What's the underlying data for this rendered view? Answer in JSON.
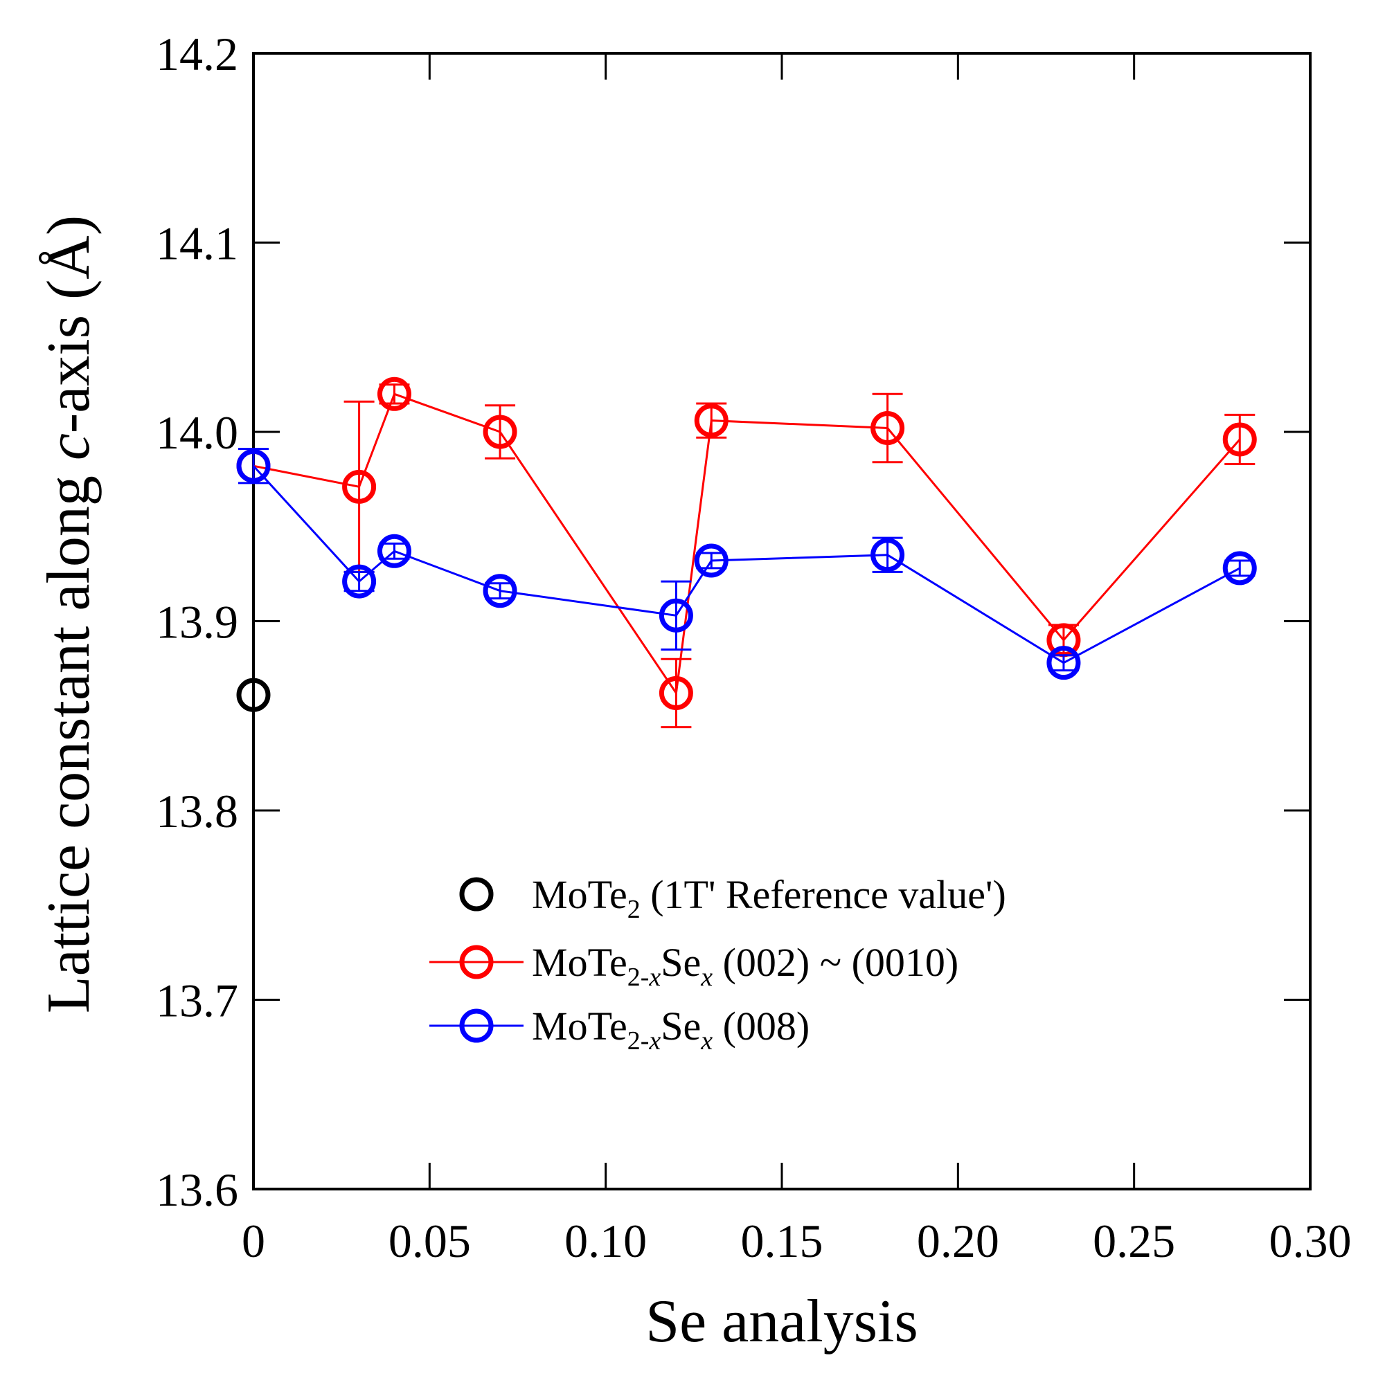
{
  "chart_data": {
    "type": "scatter",
    "xlabel": "Se analysis",
    "ylabel": {
      "before": "Lattice constant along ",
      "italic": "c",
      "after": "-axis (Å)"
    },
    "xlim": [
      0,
      0.3
    ],
    "ylim": [
      13.6,
      14.2
    ],
    "xticks": [
      0,
      0.05,
      0.1,
      0.15,
      0.2,
      0.25,
      0.3
    ],
    "xtick_labels": [
      "0",
      "0.05",
      "0.10",
      "0.15",
      "0.20",
      "0.25",
      "0.30"
    ],
    "yticks": [
      13.6,
      13.7,
      13.8,
      13.9,
      14.0,
      14.1,
      14.2
    ],
    "ytick_labels": [
      "13.6",
      "13.7",
      "13.8",
      "13.9",
      "14.0",
      "14.1",
      "14.2"
    ],
    "legend_position": "center-bottom",
    "series": [
      {
        "key": "ref",
        "color": "#000000",
        "line": false,
        "legend": {
          "main": "MoTe",
          "sub": "2",
          "rest": " (1T' Reference value')"
        },
        "points": [
          {
            "x": 0.0,
            "y": 13.861
          }
        ]
      },
      {
        "key": "red",
        "color": "#ff0000",
        "line": true,
        "legend": {
          "main": "MoTe",
          "sub": "2-x",
          "mid": "Se",
          "sub2": "x",
          "rest": " (002) ~ (0010)"
        },
        "points": [
          {
            "x": 0.0,
            "y": 13.982,
            "err": 0
          },
          {
            "x": 0.03,
            "y": 13.971,
            "err": 0.045
          },
          {
            "x": 0.04,
            "y": 14.02,
            "err": 0.005
          },
          {
            "x": 0.07,
            "y": 14.0,
            "err": 0.014
          },
          {
            "x": 0.12,
            "y": 13.862,
            "err": 0.018
          },
          {
            "x": 0.13,
            "y": 14.006,
            "err": 0.009
          },
          {
            "x": 0.18,
            "y": 14.002,
            "err": 0.018
          },
          {
            "x": 0.23,
            "y": 13.89,
            "err": 0.008
          },
          {
            "x": 0.28,
            "y": 13.996,
            "err": 0.013
          }
        ]
      },
      {
        "key": "blue",
        "color": "#0000ff",
        "line": true,
        "legend": {
          "main": "MoTe",
          "sub": "2-x",
          "mid": "Se",
          "sub2": "x",
          "rest": " (008)"
        },
        "points": [
          {
            "x": 0.0,
            "y": 13.982,
            "err": 0.009
          },
          {
            "x": 0.03,
            "y": 13.921,
            "err": 0.005
          },
          {
            "x": 0.04,
            "y": 13.937,
            "err": 0.004
          },
          {
            "x": 0.07,
            "y": 13.916,
            "err": 0.004
          },
          {
            "x": 0.12,
            "y": 13.903,
            "err": 0.018
          },
          {
            "x": 0.13,
            "y": 13.932,
            "err": 0.004
          },
          {
            "x": 0.18,
            "y": 13.935,
            "err": 0.009
          },
          {
            "x": 0.23,
            "y": 13.878,
            "err": 0.004
          },
          {
            "x": 0.28,
            "y": 13.928,
            "err": 0.004
          }
        ]
      }
    ]
  }
}
